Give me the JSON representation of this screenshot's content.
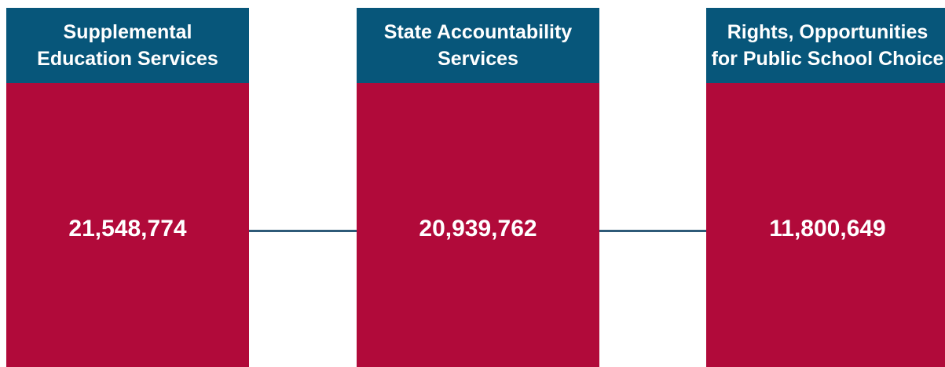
{
  "boxes": [
    {
      "title": [
        "Supplemental",
        "Education Services"
      ],
      "value": "21,548,774"
    },
    {
      "title": [
        "State Accountability",
        "Services"
      ],
      "value": "20,939,762"
    },
    {
      "title": [
        "Rights, Opportunities",
        "for Public School Choice"
      ],
      "value": "11,800,649"
    }
  ]
}
